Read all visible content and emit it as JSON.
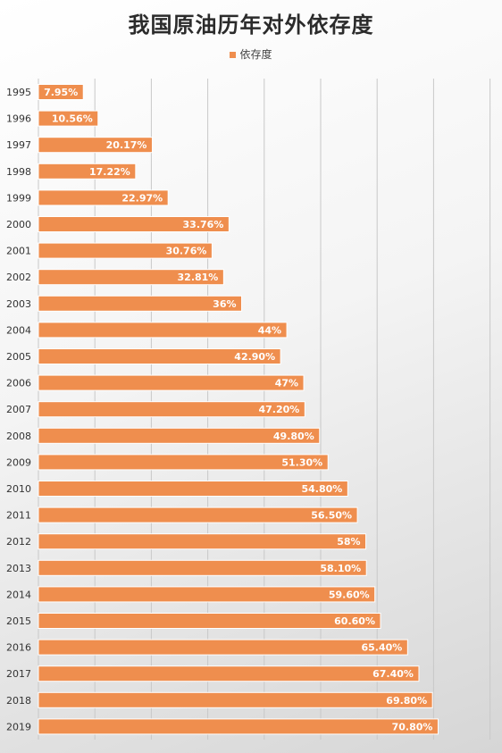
{
  "chart_data": {
    "type": "bar",
    "orientation": "horizontal",
    "title": "我国原油历年对外依存度",
    "legend": {
      "position": "top",
      "entries": [
        "依存度"
      ]
    },
    "colors": {
      "bar": "#ef8e4e",
      "bar_border": "#ffffff",
      "grid": "#c8c8c8",
      "label": "#ffffff"
    },
    "grid": true,
    "xlim": [
      0,
      80
    ],
    "categories": [
      "1995",
      "1996",
      "1997",
      "1998",
      "1999",
      "2000",
      "2001",
      "2002",
      "2003",
      "2004",
      "2005",
      "2006",
      "2007",
      "2008",
      "2009",
      "2010",
      "2011",
      "2012",
      "2013",
      "2014",
      "2015",
      "2016",
      "2017",
      "2018",
      "2019"
    ],
    "series": [
      {
        "name": "依存度",
        "values": [
          7.95,
          10.56,
          20.17,
          17.22,
          22.97,
          33.76,
          30.76,
          32.81,
          36,
          44,
          42.9,
          47,
          47.2,
          49.8,
          51.3,
          54.8,
          56.5,
          58,
          58.1,
          59.6,
          60.6,
          65.4,
          67.4,
          69.8,
          70.8
        ],
        "labels": [
          "7.95%",
          "10.56%",
          "20.17%",
          "17.22%",
          "22.97%",
          "33.76%",
          "30.76%",
          "32.81%",
          "36%",
          "44%",
          "42.90%",
          "47%",
          "47.20%",
          "49.80%",
          "51.30%",
          "54.80%",
          "56.50%",
          "58%",
          "58.10%",
          "59.60%",
          "60.60%",
          "65.40%",
          "67.40%",
          "69.80%",
          "70.80%"
        ]
      }
    ]
  }
}
